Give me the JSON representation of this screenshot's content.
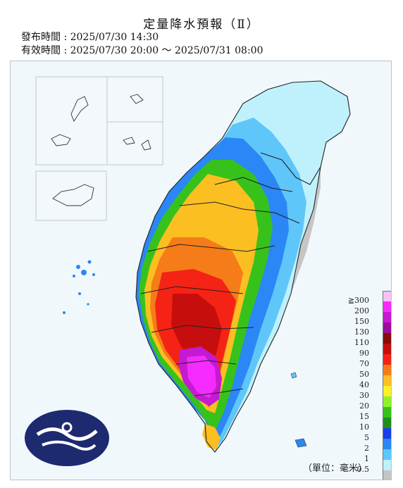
{
  "title": "定量降水預報（Ⅱ）",
  "issue_time": "發布時間 : 2025/07/30 14:30",
  "valid_time": "有效時間 : 2025/07/30 20:00 ～ 2025/07/31 08:00",
  "unit": "（單位：毫米）",
  "legend": {
    "labels": [
      "≧300",
      "200",
      "150",
      "130",
      "110",
      "90",
      "70",
      "50",
      "40",
      "30",
      "20",
      "15",
      "10",
      "5",
      "2",
      "1",
      "0.5"
    ],
    "colors": [
      "#fdc0f4",
      "#f52bff",
      "#c41ad1",
      "#9b0e9b",
      "#8b0a0a",
      "#c70e0e",
      "#f52315",
      "#f57c18",
      "#fbbf22",
      "#fbf129",
      "#8ef229",
      "#37c21b",
      "#1f8f19",
      "#1b3fe9",
      "#2a87f5",
      "#5fc6fa",
      "#bff1fd",
      "#c5c5c5"
    ]
  },
  "logo_alt": "central-weather-logo"
}
